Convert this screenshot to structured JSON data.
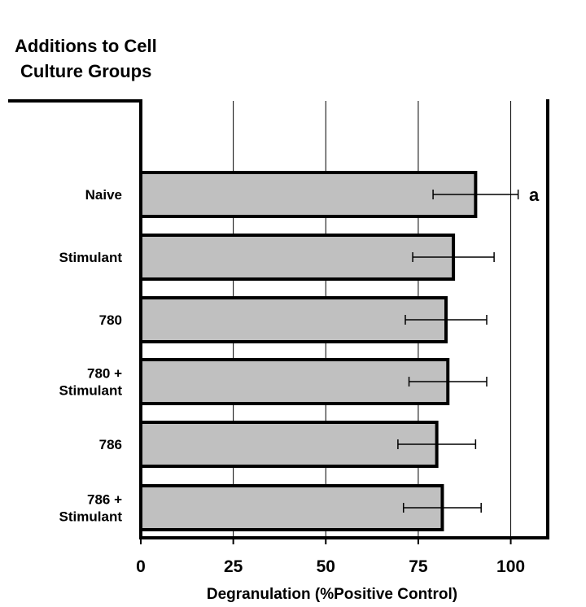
{
  "chart_data": {
    "type": "bar",
    "orientation": "horizontal",
    "title_lines": [
      "Additions to Cell",
      "Culture Groups"
    ],
    "categories": [
      "Naive",
      "Stimulant",
      "780",
      "780 + Stimulant",
      "786",
      "786 + Stimulant"
    ],
    "category_lines": [
      [
        "Naive"
      ],
      [
        "Stimulant"
      ],
      [
        "780"
      ],
      [
        "780 +",
        "Stimulant"
      ],
      [
        "786"
      ],
      [
        "786 +",
        "Stimulant"
      ]
    ],
    "values": [
      90.5,
      84.5,
      82.5,
      83,
      80,
      81.5
    ],
    "error": [
      11.5,
      11,
      11,
      10.5,
      10.5,
      10.5
    ],
    "xlabel": "Degranulation (%Positive Control)",
    "ylabel": "",
    "xlim": [
      0,
      110
    ],
    "xticks": [
      0,
      25,
      50,
      75,
      100
    ],
    "grid": true,
    "annotations": [
      {
        "category": "Naive",
        "text": "a"
      }
    ],
    "colors": {
      "bar_fill": "#c0c0c0",
      "bar_stroke": "#000000",
      "grid": "#000000"
    }
  }
}
